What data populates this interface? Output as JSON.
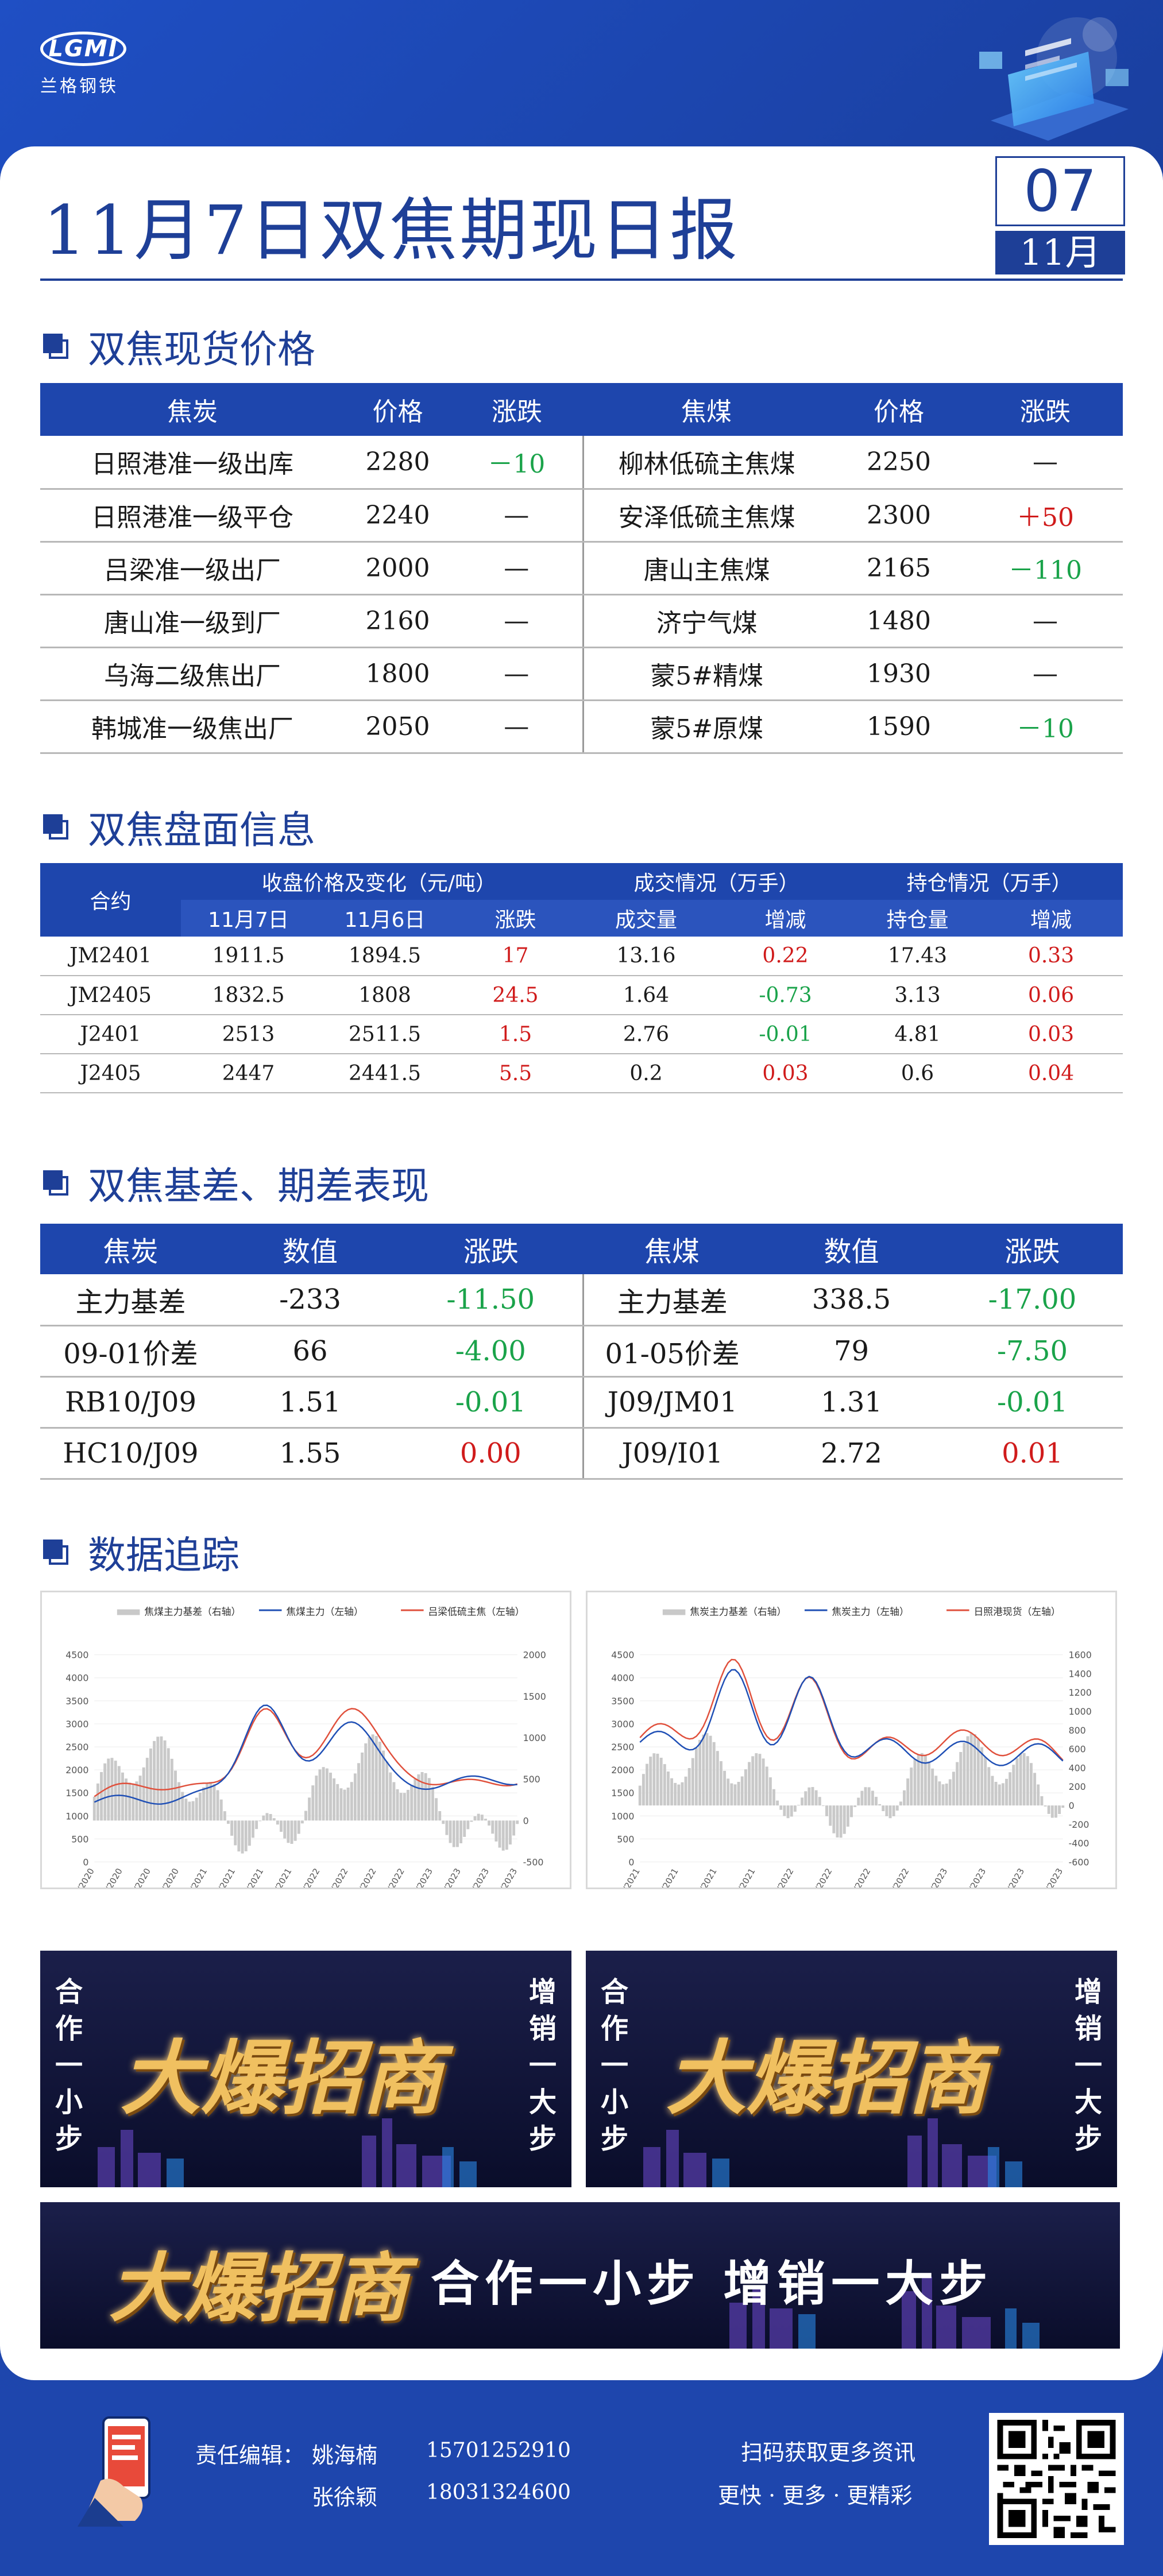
{
  "brand": {
    "logo_text": "LGMI",
    "name": "兰格钢铁"
  },
  "title": "11月7日双焦期现日报",
  "date": {
    "day": "07",
    "month": "11月"
  },
  "sections": {
    "spot": "双焦现货价格",
    "futures": "双焦盘面信息",
    "basis": "双焦基差、期差表现",
    "tracking": "数据追踪"
  },
  "spot_table": {
    "headers": [
      "焦炭",
      "价格",
      "涨跌",
      "焦煤",
      "价格",
      "涨跌"
    ],
    "rows": [
      {
        "coke": "日照港准一级出库",
        "coke_price": "2280",
        "coke_chg": "－10",
        "coke_dir": "down",
        "coal": "柳林低硫主焦煤",
        "coal_price": "2250",
        "coal_chg": "—",
        "coal_dir": "flat"
      },
      {
        "coke": "日照港准一级平仓",
        "coke_price": "2240",
        "coke_chg": "—",
        "coke_dir": "flat",
        "coal": "安泽低硫主焦煤",
        "coal_price": "2300",
        "coal_chg": "＋50",
        "coal_dir": "up"
      },
      {
        "coke": "吕梁准一级出厂",
        "coke_price": "2000",
        "coke_chg": "—",
        "coke_dir": "flat",
        "coal": "唐山主焦煤",
        "coal_price": "2165",
        "coal_chg": "－110",
        "coal_dir": "down"
      },
      {
        "coke": "唐山准一级到厂",
        "coke_price": "2160",
        "coke_chg": "—",
        "coke_dir": "flat",
        "coal": "济宁气煤",
        "coal_price": "1480",
        "coal_chg": "—",
        "coal_dir": "flat"
      },
      {
        "coke": "乌海二级焦出厂",
        "coke_price": "1800",
        "coke_chg": "—",
        "coke_dir": "flat",
        "coal": "蒙5#精煤",
        "coal_price": "1930",
        "coal_chg": "—",
        "coal_dir": "flat"
      },
      {
        "coke": "韩城准一级焦出厂",
        "coke_price": "2050",
        "coke_chg": "—",
        "coke_dir": "flat",
        "coal": "蒙5#原煤",
        "coal_price": "1590",
        "coal_chg": "－10",
        "coal_dir": "down"
      }
    ]
  },
  "futures_table": {
    "h_contract": "合约",
    "h_close": "收盘价格及变化（元/吨）",
    "h_volume": "成交情况（万手）",
    "h_oi": "持仓情况（万手）",
    "sub": [
      "11月7日",
      "11月6日",
      "涨跌",
      "成交量",
      "增减",
      "持仓量",
      "增减"
    ],
    "rows": [
      {
        "contract": "JM2401",
        "d7": "1911.5",
        "d6": "1894.5",
        "chg": "17",
        "chg_dir": "up",
        "vol": "13.16",
        "vol_chg": "0.22",
        "vol_dir": "up",
        "oi": "17.43",
        "oi_chg": "0.33",
        "oi_dir": "up"
      },
      {
        "contract": "JM2405",
        "d7": "1832.5",
        "d6": "1808",
        "chg": "24.5",
        "chg_dir": "up",
        "vol": "1.64",
        "vol_chg": "-0.73",
        "vol_dir": "down",
        "oi": "3.13",
        "oi_chg": "0.06",
        "oi_dir": "up"
      },
      {
        "contract": "J2401",
        "d7": "2513",
        "d6": "2511.5",
        "chg": "1.5",
        "chg_dir": "up",
        "vol": "2.76",
        "vol_chg": "-0.01",
        "vol_dir": "down",
        "oi": "4.81",
        "oi_chg": "0.03",
        "oi_dir": "up"
      },
      {
        "contract": "J2405",
        "d7": "2447",
        "d6": "2441.5",
        "chg": "5.5",
        "chg_dir": "up",
        "vol": "0.2",
        "vol_chg": "0.03",
        "vol_dir": "up",
        "oi": "0.6",
        "oi_chg": "0.04",
        "oi_dir": "up"
      }
    ]
  },
  "basis_table": {
    "headers": [
      "焦炭",
      "数值",
      "涨跌",
      "焦煤",
      "数值",
      "涨跌"
    ],
    "rows": [
      {
        "a": "主力基差",
        "a_val": "-233",
        "a_chg": "-11.50",
        "a_dir": "down",
        "b": "主力基差",
        "b_val": "338.5",
        "b_chg": "-17.00",
        "b_dir": "down"
      },
      {
        "a": "09-01价差",
        "a_val": "66",
        "a_chg": "-4.00",
        "a_dir": "down",
        "b": "01-05价差",
        "b_val": "79",
        "b_chg": "-7.50",
        "b_dir": "down"
      },
      {
        "a": "RB10/J09",
        "a_val": "1.51",
        "a_chg": "-0.01",
        "a_dir": "down",
        "b": "J09/JM01",
        "b_val": "1.31",
        "b_chg": "-0.01",
        "b_dir": "down"
      },
      {
        "a": "HC10/J09",
        "a_val": "1.55",
        "a_chg": "0.00",
        "a_dir": "up",
        "b": "J09/I01",
        "b_val": "2.72",
        "b_chg": "0.01",
        "b_dir": "up"
      }
    ]
  },
  "charts": [
    {
      "legend": [
        "焦煤主力基差（右轴）",
        "焦煤主力（左轴）",
        "吕梁低硫主焦（左轴）"
      ],
      "left_ticks": [
        "4500",
        "4000",
        "3500",
        "3000",
        "2500",
        "2000",
        "1500",
        "1000",
        "500",
        "0"
      ],
      "right_ticks": [
        "2000",
        "1500",
        "1000",
        "500",
        "0",
        "-500"
      ],
      "x_ticks": [
        "1/2/2020",
        "4/2/2020",
        "7/2/2020",
        "10/2/2020",
        "1/2/2021",
        "4/2/2021",
        "7/2/2021",
        "10/2/2021",
        "1/2/2022",
        "4/2/2022",
        "7/2/2022",
        "10/2/2022",
        "1/2/2023",
        "4/2/2023",
        "7/2/2023",
        "10/2/2023"
      ],
      "colors": {
        "basis": "#c9c9c9",
        "main": "#1f4fb5",
        "spot": "#e0503c"
      }
    },
    {
      "legend": [
        "焦炭主力基差（右轴）",
        "焦炭主力（左轴）",
        "日照港现货（左轴）"
      ],
      "left_ticks": [
        "4500",
        "4000",
        "3500",
        "3000",
        "2500",
        "2000",
        "1500",
        "1000",
        "500",
        "0"
      ],
      "right_ticks": [
        "1600",
        "1400",
        "1200",
        "1000",
        "800",
        "600",
        "400",
        "200",
        "0",
        "-200",
        "-400",
        "-600"
      ],
      "x_ticks": [
        "1/4/2021",
        "4/4/2021",
        "7/4/2021",
        "10/4/2021",
        "1/4/2022",
        "4/4/2022",
        "7/4/2022",
        "10/4/2022",
        "1/4/2023",
        "4/4/2023",
        "7/4/2023",
        "10/4/2023"
      ],
      "colors": {
        "basis": "#c9c9c9",
        "main": "#1f4fb5",
        "spot": "#e0503c"
      }
    }
  ],
  "ads": {
    "big_text": "大爆招商",
    "left_side": "合作一小步",
    "right_side": "增销一大步",
    "slogan": "合作一小步  增销一大步"
  },
  "footer": {
    "editor_label": "责任编辑：",
    "editors": [
      {
        "name": "姚海楠",
        "phone": "15701252910"
      },
      {
        "name": "张徐颖",
        "phone": "18031324600"
      }
    ],
    "scan_text": "扫码获取更多资讯",
    "tagline": "更快 · 更多 · 更精彩"
  }
}
